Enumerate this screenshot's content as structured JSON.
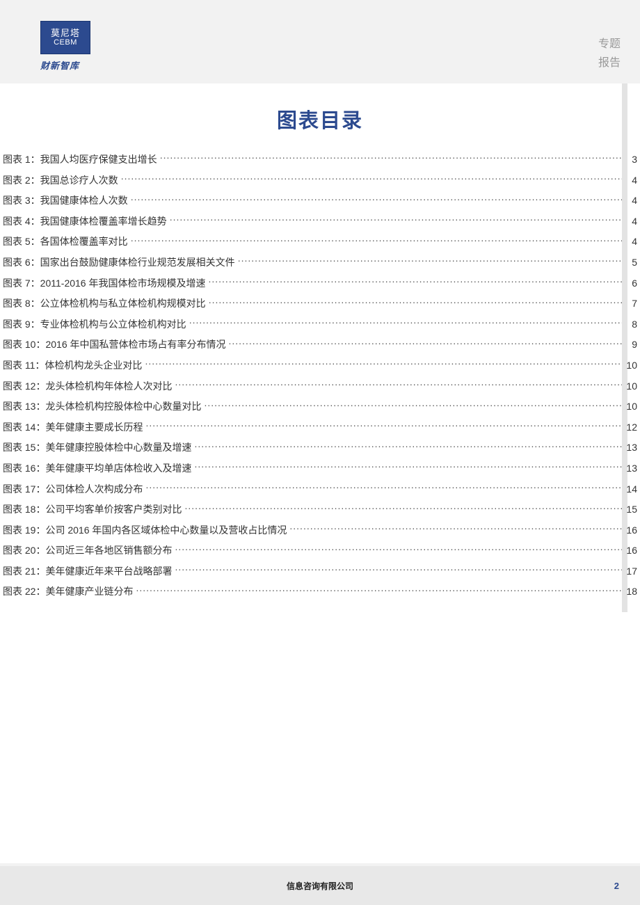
{
  "logo": {
    "cn": "莫尼塔",
    "en": "CEBM",
    "sub": "财新智库"
  },
  "doc_type": {
    "line1": "专题",
    "line2": "报告"
  },
  "title": "图表目录",
  "toc_prefix": "图表 ",
  "toc_sep": "：",
  "toc": [
    {
      "n": "1",
      "t": "我国人均医疗保健支出增长",
      "p": "3"
    },
    {
      "n": "2",
      "t": "我国总诊疗人次数",
      "p": "4"
    },
    {
      "n": "3",
      "t": "我国健康体检人次数",
      "p": "4"
    },
    {
      "n": "4",
      "t": "我国健康体检覆盖率增长趋势",
      "p": "4"
    },
    {
      "n": "5",
      "t": "各国体检覆盖率对比",
      "p": "4"
    },
    {
      "n": "6",
      "t": "国家出台鼓励健康体检行业规范发展相关文件",
      "p": "5"
    },
    {
      "n": "7",
      "t": "2011-2016 年我国体检市场规模及增速",
      "p": "6"
    },
    {
      "n": "8",
      "t": "公立体检机构与私立体检机构规模对比",
      "p": "7"
    },
    {
      "n": "9",
      "t": "专业体检机构与公立体检机构对比",
      "p": "8"
    },
    {
      "n": "10",
      "t": "2016 年中国私营体检市场占有率分布情况",
      "p": "9"
    },
    {
      "n": "11",
      "t": "体检机构龙头企业对比",
      "p": "10"
    },
    {
      "n": "12",
      "t": "龙头体检机构年体检人次对比",
      "p": "10"
    },
    {
      "n": "13",
      "t": "龙头体检机构控股体检中心数量对比",
      "p": "10"
    },
    {
      "n": "14",
      "t": "美年健康主要成长历程",
      "p": "12"
    },
    {
      "n": "15",
      "t": "美年健康控股体检中心数量及增速",
      "p": "13"
    },
    {
      "n": "16",
      "t": "美年健康平均单店体检收入及增速",
      "p": "13"
    },
    {
      "n": "17",
      "t": "公司体检人次构成分布",
      "p": "14"
    },
    {
      "n": "18",
      "t": "公司平均客单价按客户类别对比",
      "p": "15"
    },
    {
      "n": "19",
      "t": "公司 2016 年国内各区域体检中心数量以及营收占比情况",
      "p": "16"
    },
    {
      "n": "20",
      "t": "公司近三年各地区销售额分布",
      "p": "16"
    },
    {
      "n": "21",
      "t": "美年健康近年来平台战略部署",
      "p": "17"
    },
    {
      "n": "22",
      "t": "美年健康产业链分布",
      "p": "18"
    }
  ],
  "footer": "信息咨询有限公司",
  "page_number": "2",
  "colors": {
    "brand": "#2c4a8f",
    "bg_page": "#f2f2f2",
    "bg_content": "#ffffff",
    "footer_bg": "#e8e8e8",
    "text_muted": "#999999"
  }
}
